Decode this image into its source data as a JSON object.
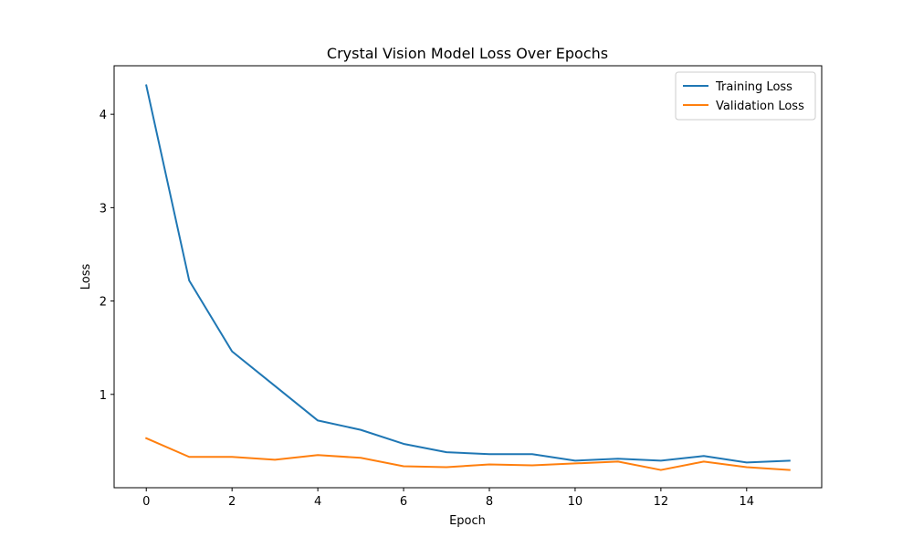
{
  "chart_data": {
    "type": "line",
    "title": "Crystal Vision Model Loss Over Epochs",
    "xlabel": "Epoch",
    "ylabel": "Loss",
    "x": [
      0,
      1,
      2,
      3,
      4,
      5,
      6,
      7,
      8,
      9,
      10,
      11,
      12,
      13,
      14,
      15
    ],
    "xticks": [
      0,
      2,
      4,
      6,
      8,
      10,
      12,
      14
    ],
    "yticks": [
      1,
      2,
      3,
      4
    ],
    "xlim": [
      -0.75,
      15.75
    ],
    "ylim": [
      0.0,
      4.52
    ],
    "grid": false,
    "legend_position": "top-right",
    "series": [
      {
        "name": "Training Loss",
        "color": "#1f77b4",
        "values": [
          4.31,
          2.22,
          1.46,
          1.09,
          0.72,
          0.62,
          0.47,
          0.38,
          0.36,
          0.36,
          0.29,
          0.31,
          0.29,
          0.34,
          0.27,
          0.29
        ]
      },
      {
        "name": "Validation Loss",
        "color": "#ff7f0e",
        "values": [
          0.53,
          0.33,
          0.33,
          0.3,
          0.35,
          0.32,
          0.23,
          0.22,
          0.25,
          0.24,
          0.26,
          0.28,
          0.19,
          0.28,
          0.22,
          0.19
        ]
      }
    ]
  }
}
